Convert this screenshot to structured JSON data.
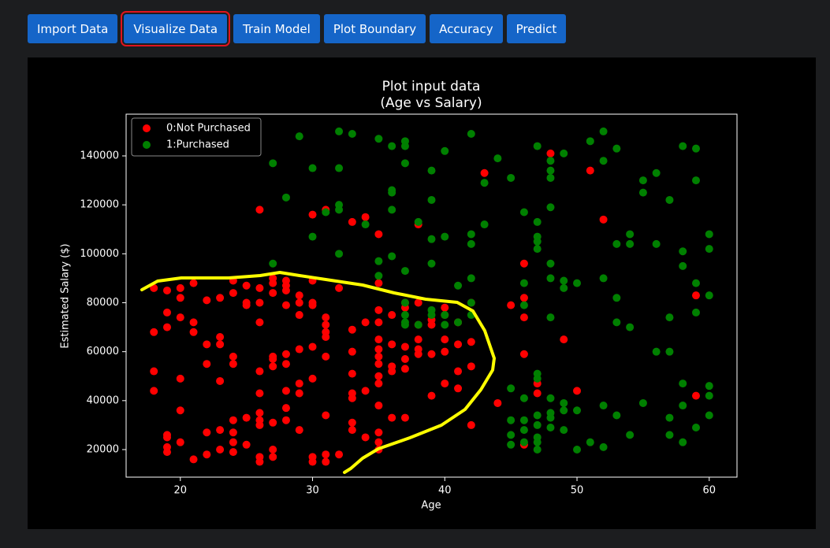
{
  "toolbar": {
    "buttons": [
      "Import Data",
      "Visualize Data",
      "Train Model",
      "Plot Boundary",
      "Accuracy",
      "Predict"
    ],
    "selected": 1
  },
  "chart_data": {
    "type": "scatter",
    "title": [
      "Plot input data",
      "(Age vs Salary)"
    ],
    "x_label": "Age",
    "y_label": "Estimated Salary ($)",
    "xlim": [
      15.9,
      62.1
    ],
    "ylim": [
      8740,
      157050
    ],
    "xticks": [
      20,
      30,
      40,
      50,
      60
    ],
    "yticks": [
      20000,
      40000,
      60000,
      80000,
      100000,
      120000,
      140000
    ],
    "legend": "upper-left",
    "series": [
      {
        "name": "0:Not Purchased",
        "color": "#ff0000",
        "x": [
          18,
          18,
          18,
          18,
          19,
          19,
          19,
          19,
          19,
          19,
          19,
          20,
          20,
          20,
          20,
          20,
          20,
          21,
          21,
          21,
          21,
          22,
          22,
          22,
          22,
          22,
          23,
          23,
          23,
          23,
          23,
          23,
          24,
          24,
          24,
          24,
          24,
          24,
          24,
          24,
          25,
          25,
          25,
          25,
          25,
          26,
          26,
          26,
          26,
          26,
          26,
          26,
          26,
          26,
          26,
          26,
          27,
          27,
          27,
          27,
          27,
          27,
          27,
          27,
          27,
          28,
          28,
          28,
          28,
          28,
          28,
          28,
          28,
          28,
          29,
          29,
          29,
          29,
          29,
          29,
          29,
          30,
          30,
          30,
          30,
          30,
          30,
          30,
          30,
          31,
          31,
          31,
          31,
          31,
          31,
          31,
          31,
          31,
          32,
          32,
          33,
          33,
          33,
          33,
          33,
          33,
          33,
          33,
          34,
          34,
          34,
          34,
          35,
          35,
          35,
          35,
          35,
          35,
          35,
          35,
          35,
          35,
          35,
          35,
          35,
          35,
          36,
          36,
          36,
          36,
          36,
          37,
          37,
          37,
          37,
          37,
          37,
          38,
          38,
          38,
          38,
          38,
          38,
          39,
          39,
          39,
          39,
          40,
          40,
          40,
          40,
          40,
          41,
          41,
          41,
          41,
          42,
          42,
          42,
          42,
          43,
          44,
          45,
          46,
          46,
          46,
          46,
          46,
          47,
          47,
          48,
          49,
          50,
          51,
          52,
          59,
          59
        ],
        "values": [
          86000,
          68000,
          52000,
          44000,
          85000,
          76000,
          70000,
          26000,
          25000,
          21000,
          19000,
          86000,
          82000,
          74000,
          49000,
          36000,
          23000,
          88000,
          72000,
          68000,
          16000,
          81000,
          63000,
          55000,
          27000,
          18000,
          82000,
          66000,
          63000,
          48000,
          28000,
          20000,
          89000,
          84000,
          58000,
          55000,
          32000,
          27000,
          23000,
          19000,
          87000,
          80000,
          79000,
          33000,
          22000,
          118000,
          86000,
          80000,
          72000,
          52000,
          43000,
          35000,
          32000,
          30000,
          17000,
          15000,
          90000,
          88000,
          84000,
          58000,
          57000,
          54000,
          31000,
          20000,
          17000,
          89000,
          87000,
          85000,
          79000,
          59000,
          55000,
          44000,
          37000,
          32000,
          83000,
          80000,
          75000,
          61000,
          47000,
          43000,
          28000,
          116000,
          89000,
          80000,
          79000,
          62000,
          49000,
          17000,
          15000,
          118000,
          74000,
          71000,
          68000,
          66000,
          58000,
          34000,
          18000,
          15000,
          86000,
          18000,
          113000,
          69000,
          60000,
          51000,
          43000,
          41000,
          31000,
          28000,
          115000,
          72000,
          44000,
          25000,
          108000,
          88000,
          77000,
          72000,
          65000,
          61000,
          58000,
          55000,
          50000,
          47000,
          38000,
          27000,
          23000,
          20000,
          75000,
          63000,
          54000,
          52000,
          33000,
          80000,
          78000,
          62000,
          57000,
          53000,
          33000,
          80000,
          71000,
          65000,
          61000,
          59000,
          112000,
          73000,
          71000,
          59000,
          42000,
          78000,
          75000,
          65000,
          60000,
          47000,
          72000,
          63000,
          45000,
          52000,
          80000,
          64000,
          54000,
          30000,
          133000,
          39000,
          79000,
          96000,
          82000,
          74000,
          59000,
          22000,
          47000,
          43000,
          141000,
          65000,
          44000,
          134000,
          114000,
          83000,
          42000
        ]
      },
      {
        "name": "1:Purchased",
        "color": "#008000",
        "x": [
          27,
          27,
          28,
          29,
          30,
          30,
          31,
          32,
          32,
          32,
          32,
          32,
          33,
          34,
          35,
          35,
          35,
          36,
          36,
          36,
          36,
          36,
          37,
          37,
          37,
          37,
          37,
          37,
          37,
          37,
          38,
          38,
          39,
          39,
          39,
          39,
          39,
          39,
          40,
          40,
          40,
          40,
          41,
          41,
          42,
          42,
          42,
          42,
          42,
          42,
          43,
          43,
          44,
          45,
          45,
          45,
          45,
          45,
          46,
          46,
          46,
          46,
          46,
          46,
          46,
          47,
          47,
          47,
          47,
          47,
          47,
          47,
          47,
          47,
          47,
          47,
          47,
          48,
          48,
          48,
          48,
          48,
          48,
          48,
          48,
          48,
          48,
          48,
          49,
          49,
          49,
          49,
          49,
          49,
          50,
          50,
          50,
          51,
          51,
          52,
          52,
          52,
          52,
          52,
          53,
          53,
          53,
          53,
          53,
          54,
          54,
          54,
          54,
          55,
          55,
          55,
          56,
          56,
          56,
          57,
          57,
          57,
          57,
          57,
          58,
          58,
          58,
          58,
          58,
          58,
          59,
          59,
          59,
          59,
          59,
          60,
          60,
          60,
          60,
          60,
          60
        ],
        "values": [
          137000,
          96000,
          123000,
          148000,
          135000,
          107000,
          117000,
          150000,
          135000,
          120000,
          118000,
          100000,
          149000,
          112000,
          147000,
          97000,
          91000,
          144000,
          126000,
          125000,
          118000,
          99000,
          146000,
          144000,
          137000,
          93000,
          80000,
          75000,
          72000,
          71000,
          113000,
          71000,
          134000,
          122000,
          106000,
          96000,
          77000,
          75000,
          142000,
          107000,
          75000,
          71000,
          87000,
          72000,
          149000,
          108000,
          104000,
          90000,
          80000,
          75000,
          129000,
          112000,
          139000,
          131000,
          45000,
          32000,
          26000,
          22000,
          117000,
          88000,
          79000,
          41000,
          32000,
          28000,
          23000,
          144000,
          113000,
          107000,
          105000,
          102000,
          51000,
          49000,
          34000,
          30000,
          25000,
          23000,
          20000,
          138000,
          134000,
          131000,
          119000,
          96000,
          90000,
          74000,
          41000,
          35000,
          33000,
          29000,
          141000,
          89000,
          86000,
          39000,
          36000,
          28000,
          88000,
          36000,
          20000,
          146000,
          23000,
          150000,
          138000,
          90000,
          38000,
          21000,
          143000,
          104000,
          82000,
          72000,
          34000,
          108000,
          104000,
          70000,
          26000,
          130000,
          125000,
          39000,
          133000,
          104000,
          60000,
          122000,
          74000,
          60000,
          33000,
          26000,
          144000,
          101000,
          95000,
          47000,
          38000,
          23000,
          143000,
          130000,
          88000,
          76000,
          29000,
          108000,
          102000,
          83000,
          46000,
          42000,
          34000
        ]
      }
    ]
  }
}
